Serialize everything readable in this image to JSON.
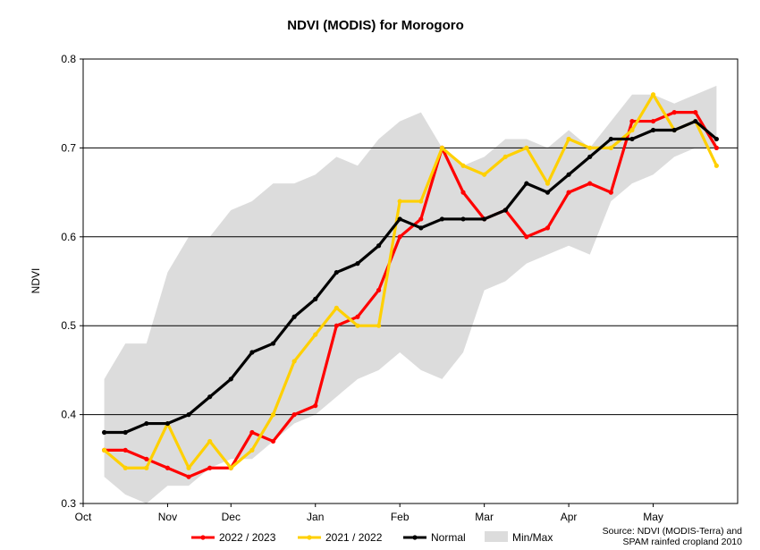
{
  "chart_data": {
    "type": "line",
    "title": "NDVI (MODIS) for Morogoro",
    "ylabel": "NDVI",
    "xlabel": "",
    "ylim": [
      0.3,
      0.8
    ],
    "yticks": [
      "0.3",
      "0.4",
      "0.5",
      "0.6",
      "0.7",
      "0.8"
    ],
    "xlim": [
      0,
      31
    ],
    "xtick_labels": [
      {
        "label": "Oct",
        "x": 0
      },
      {
        "label": "Nov",
        "x": 4
      },
      {
        "label": "Dec",
        "x": 7
      },
      {
        "label": "Jan",
        "x": 11
      },
      {
        "label": "Feb",
        "x": 15
      },
      {
        "label": "Mar",
        "x": 19
      },
      {
        "label": "Apr",
        "x": 23
      },
      {
        "label": "May",
        "x": 27
      }
    ],
    "grid": "horizontal",
    "legend_position": "bottom",
    "x": [
      1,
      2,
      3,
      4,
      5,
      6,
      7,
      8,
      9,
      10,
      11,
      12,
      13,
      14,
      15,
      16,
      17,
      18,
      19,
      20,
      21,
      22,
      23,
      24,
      25,
      26,
      27,
      28,
      29,
      30
    ],
    "band": {
      "name": "Min/Max",
      "color": "#dcdcdc",
      "min": [
        0.33,
        0.31,
        0.3,
        0.32,
        0.32,
        0.34,
        0.35,
        0.35,
        0.37,
        0.39,
        0.4,
        0.42,
        0.44,
        0.45,
        0.47,
        0.45,
        0.44,
        0.47,
        0.54,
        0.55,
        0.57,
        0.58,
        0.59,
        0.58,
        0.64,
        0.66,
        0.67,
        0.69,
        0.7,
        0.7
      ],
      "max": [
        0.44,
        0.48,
        0.48,
        0.56,
        0.6,
        0.6,
        0.63,
        0.64,
        0.66,
        0.66,
        0.67,
        0.69,
        0.68,
        0.71,
        0.73,
        0.74,
        0.7,
        0.68,
        0.69,
        0.71,
        0.71,
        0.7,
        0.72,
        0.7,
        0.73,
        0.76,
        0.76,
        0.75,
        0.76,
        0.77
      ]
    },
    "series": [
      {
        "name": "2022 / 2023",
        "color": "#ff0000",
        "values": [
          0.36,
          0.36,
          0.35,
          0.34,
          0.33,
          0.34,
          0.34,
          0.38,
          0.37,
          0.4,
          0.41,
          0.5,
          0.51,
          0.54,
          0.6,
          0.62,
          0.7,
          0.65,
          0.62,
          0.63,
          0.6,
          0.61,
          0.65,
          0.66,
          0.65,
          0.73,
          0.73,
          0.74,
          0.74,
          0.7
        ]
      },
      {
        "name": "2021 / 2022",
        "color": "#ffd000",
        "values": [
          0.36,
          0.34,
          0.34,
          0.39,
          0.34,
          0.37,
          0.34,
          0.36,
          0.4,
          0.46,
          0.49,
          0.52,
          0.5,
          0.5,
          0.64,
          0.64,
          0.7,
          0.68,
          0.67,
          0.69,
          0.7,
          0.66,
          0.71,
          0.7,
          0.7,
          0.72,
          0.76,
          0.72,
          0.73,
          0.68
        ]
      },
      {
        "name": "Normal",
        "color": "#000000",
        "values": [
          0.38,
          0.38,
          0.39,
          0.39,
          0.4,
          0.42,
          0.44,
          0.47,
          0.48,
          0.51,
          0.53,
          0.56,
          0.57,
          0.59,
          0.62,
          0.61,
          0.62,
          0.62,
          0.62,
          0.63,
          0.66,
          0.65,
          0.67,
          0.69,
          0.71,
          0.71,
          0.72,
          0.72,
          0.73,
          0.71
        ]
      }
    ],
    "source_lines": [
      "Source: NDVI (MODIS-Terra) and",
      "SPAM rainfed cropland 2010"
    ]
  }
}
